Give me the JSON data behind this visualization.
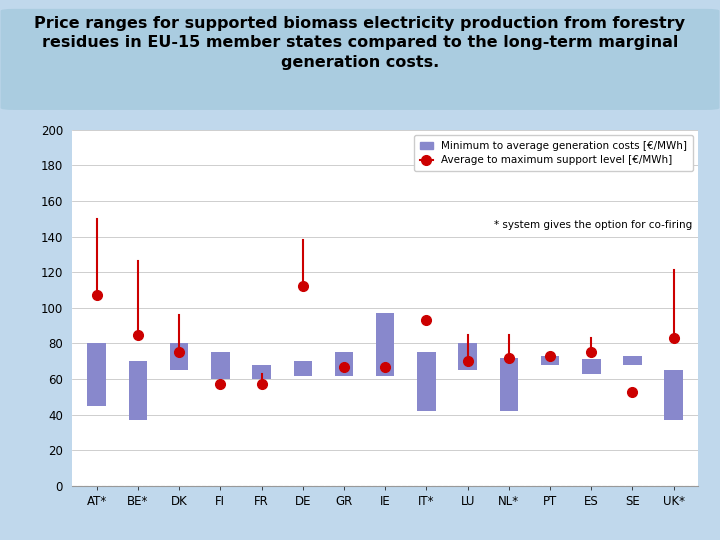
{
  "countries": [
    "AT*",
    "BE*",
    "DK",
    "FI",
    "FR",
    "DE",
    "GR",
    "IE",
    "IT*",
    "LU",
    "NL*",
    "PT",
    "ES",
    "SE",
    "UK*"
  ],
  "bar_bottom": [
    45,
    37,
    65,
    60,
    60,
    62,
    62,
    62,
    42,
    65,
    42,
    68,
    63,
    68,
    37
  ],
  "bar_top": [
    80,
    70,
    80,
    75,
    68,
    70,
    75,
    97,
    75,
    80,
    72,
    73,
    71,
    73,
    65
  ],
  "dot_center": [
    107,
    85,
    75,
    57,
    57,
    112,
    67,
    67,
    93,
    70,
    72,
    73,
    75,
    53,
    83
  ],
  "err_lower": [
    107,
    85,
    75,
    57,
    57,
    112,
    67,
    67,
    93,
    70,
    72,
    73,
    75,
    53,
    83
  ],
  "err_upper": [
    150,
    126,
    96,
    57,
    63,
    138,
    67,
    67,
    93,
    85,
    85,
    73,
    83,
    53,
    121
  ],
  "bar_color": "#8888cc",
  "dot_color": "#cc0000",
  "err_color": "#cc0000",
  "bg_outer": "#c0d8ec",
  "bg_plot": "#ffffff",
  "title_bg": "#aacce0",
  "ylim": [
    0,
    200
  ],
  "yticks": [
    0,
    20,
    40,
    60,
    80,
    100,
    120,
    140,
    160,
    180,
    200
  ],
  "bar_width": 0.45,
  "legend_bar_label": "Minimum to average generation costs [€/MWh]",
  "legend_dot_label": "Average to maximum support level [€/MWh]",
  "legend_note": "* system gives the option for co-firing",
  "title_fontsize": 11.5
}
